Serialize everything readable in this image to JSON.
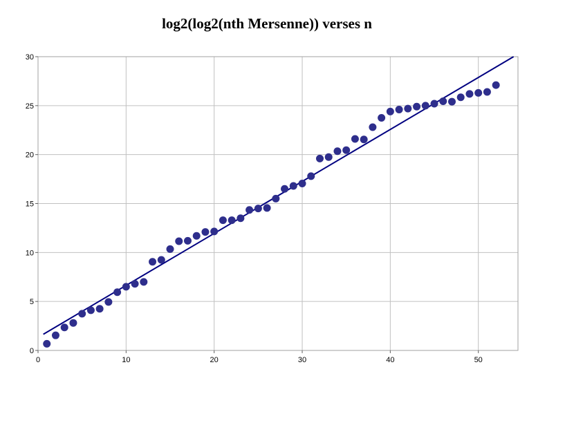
{
  "chart_data": {
    "type": "scatter",
    "title": "log2(log2(nth Mersenne)) verses n",
    "xlabel": "",
    "ylabel": "",
    "xlim": [
      0,
      54.5
    ],
    "ylim": [
      0,
      30
    ],
    "x_ticks": [
      0,
      10,
      20,
      30,
      40,
      50
    ],
    "y_ticks": [
      0,
      5,
      10,
      15,
      20,
      25,
      30
    ],
    "grid": true,
    "legend": "none",
    "point_color": "#2e2e8c",
    "line_color": "#000080",
    "grid_color": "#c0c0c0",
    "series": [
      {
        "type": "scatter",
        "points": [
          [
            1,
            0.68
          ],
          [
            2,
            1.54
          ],
          [
            3,
            2.35
          ],
          [
            4,
            2.81
          ],
          [
            5,
            3.75
          ],
          [
            6,
            4.1
          ],
          [
            7,
            4.25
          ],
          [
            8,
            4.95
          ],
          [
            9,
            5.95
          ],
          [
            10,
            6.5
          ],
          [
            11,
            6.8
          ],
          [
            12,
            7.0
          ],
          [
            13,
            9.05
          ],
          [
            14,
            9.25
          ],
          [
            15,
            10.35
          ],
          [
            16,
            11.15
          ],
          [
            17,
            11.2
          ],
          [
            18,
            11.7
          ],
          [
            19,
            12.1
          ],
          [
            20,
            12.15
          ],
          [
            21,
            13.3
          ],
          [
            22,
            13.3
          ],
          [
            23,
            13.5
          ],
          [
            24,
            14.35
          ],
          [
            25,
            14.5
          ],
          [
            26,
            14.55
          ],
          [
            27,
            15.5
          ],
          [
            28,
            16.5
          ],
          [
            29,
            16.8
          ],
          [
            30,
            17.05
          ],
          [
            31,
            17.8
          ],
          [
            32,
            19.6
          ],
          [
            33,
            19.75
          ],
          [
            34,
            20.35
          ],
          [
            35,
            20.45
          ],
          [
            36,
            21.6
          ],
          [
            37,
            21.55
          ],
          [
            38,
            22.8
          ],
          [
            39,
            23.75
          ],
          [
            40,
            24.4
          ],
          [
            41,
            24.6
          ],
          [
            42,
            24.7
          ],
          [
            43,
            24.9
          ],
          [
            44,
            25.0
          ],
          [
            45,
            25.2
          ],
          [
            46,
            25.45
          ],
          [
            47,
            25.4
          ],
          [
            48,
            25.85
          ],
          [
            49,
            26.2
          ],
          [
            50,
            26.3
          ],
          [
            51,
            26.4
          ],
          [
            52,
            27.1
          ]
        ]
      },
      {
        "type": "line",
        "points": [
          [
            0.6,
            1.65
          ],
          [
            54,
            30.0
          ]
        ]
      }
    ]
  }
}
